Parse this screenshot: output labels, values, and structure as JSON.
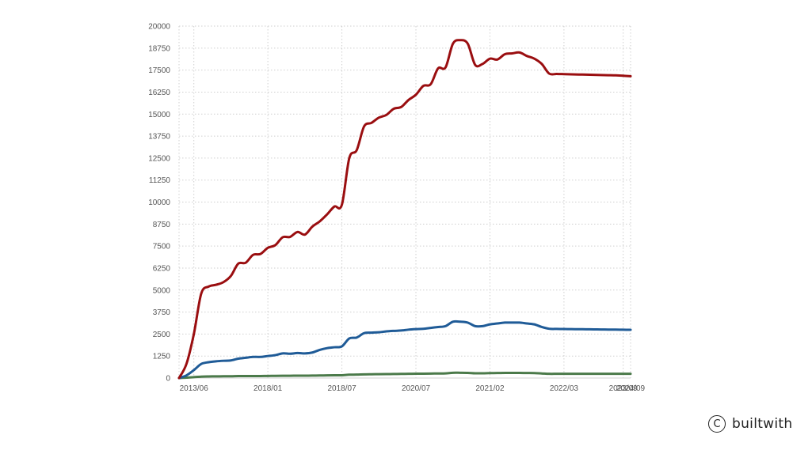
{
  "chart_data": {
    "type": "line",
    "title": "",
    "xlabel": "",
    "ylabel": "",
    "ylim": [
      0,
      20000
    ],
    "y_ticks": [
      0,
      1250,
      2500,
      3750,
      5000,
      6250,
      7500,
      8750,
      10000,
      11250,
      12500,
      13750,
      15000,
      16250,
      17500,
      18750,
      20000
    ],
    "x_range": [
      0,
      61
    ],
    "x_ticks": [
      {
        "label": "2013/06",
        "x": 2
      },
      {
        "label": "2018/01",
        "x": 12
      },
      {
        "label": "2018/07",
        "x": 22
      },
      {
        "label": "2020/07",
        "x": 32
      },
      {
        "label": "2021/02",
        "x": 42
      },
      {
        "label": "2022/03",
        "x": 52
      },
      {
        "label": "2023/09",
        "x": 60
      },
      {
        "label": "2024/09",
        "x": 61
      }
    ],
    "grid": true,
    "legend": "none",
    "series": [
      {
        "color": "#9a0e10",
        "x": [
          0,
          1,
          2,
          3,
          4,
          5,
          6,
          7,
          8,
          9,
          10,
          11,
          12,
          13,
          14,
          15,
          16,
          17,
          18,
          19,
          20,
          21,
          22,
          23,
          24,
          25,
          26,
          27,
          28,
          29,
          30,
          31,
          32,
          33,
          34,
          35,
          36,
          37,
          38,
          39,
          40,
          41,
          42,
          43,
          44,
          45,
          46,
          47,
          48,
          49,
          50,
          51,
          52,
          53,
          54,
          55,
          56,
          57,
          58,
          59,
          60,
          61
        ],
        "values": [
          0,
          800,
          2500,
          4800,
          5200,
          5300,
          5450,
          5800,
          6500,
          6550,
          7000,
          7050,
          7400,
          7550,
          8000,
          8020,
          8300,
          8150,
          8600,
          8900,
          9300,
          9750,
          9850,
          12500,
          12950,
          14300,
          14500,
          14800,
          14950,
          15300,
          15400,
          15800,
          16100,
          16600,
          16700,
          17600,
          17650,
          19000,
          19200,
          19000,
          17800,
          17850,
          18150,
          18100,
          18400,
          18450,
          18500,
          18300,
          18150,
          17850,
          17300,
          17280,
          17270,
          17260,
          17250,
          17240,
          17230,
          17220,
          17210,
          17200,
          17180,
          17150
        ]
      },
      {
        "color": "#1f5b97",
        "x": [
          0,
          1,
          2,
          3,
          4,
          5,
          6,
          7,
          8,
          9,
          10,
          11,
          12,
          13,
          14,
          15,
          16,
          17,
          18,
          19,
          20,
          21,
          22,
          23,
          24,
          25,
          26,
          27,
          28,
          29,
          30,
          31,
          32,
          33,
          34,
          35,
          36,
          37,
          38,
          39,
          40,
          41,
          42,
          43,
          44,
          45,
          46,
          47,
          48,
          49,
          50,
          51,
          52,
          53,
          54,
          55,
          56,
          57,
          58,
          59,
          60,
          61
        ],
        "values": [
          0,
          150,
          450,
          800,
          900,
          950,
          980,
          1000,
          1100,
          1150,
          1200,
          1200,
          1250,
          1300,
          1400,
          1380,
          1420,
          1400,
          1450,
          1600,
          1700,
          1750,
          1800,
          2250,
          2300,
          2550,
          2580,
          2600,
          2650,
          2680,
          2700,
          2750,
          2780,
          2800,
          2850,
          2900,
          2950,
          3200,
          3200,
          3150,
          2950,
          2950,
          3050,
          3100,
          3150,
          3150,
          3150,
          3100,
          3050,
          2900,
          2800,
          2790,
          2785,
          2780,
          2775,
          2770,
          2765,
          2760,
          2755,
          2750,
          2745,
          2740
        ]
      },
      {
        "color": "#4b7a4a",
        "x": [
          0,
          1,
          2,
          3,
          4,
          5,
          6,
          7,
          8,
          9,
          10,
          11,
          12,
          13,
          14,
          15,
          16,
          17,
          18,
          19,
          20,
          21,
          22,
          23,
          24,
          25,
          26,
          27,
          28,
          29,
          30,
          31,
          32,
          33,
          34,
          35,
          36,
          37,
          38,
          39,
          40,
          41,
          42,
          43,
          44,
          45,
          46,
          47,
          48,
          49,
          50,
          51,
          52,
          53,
          54,
          55,
          56,
          57,
          58,
          59,
          60,
          61
        ],
        "values": [
          0,
          20,
          50,
          80,
          90,
          95,
          100,
          100,
          110,
          110,
          115,
          115,
          120,
          125,
          130,
          130,
          135,
          135,
          140,
          145,
          150,
          155,
          160,
          190,
          195,
          210,
          215,
          220,
          225,
          230,
          235,
          240,
          245,
          250,
          255,
          260,
          265,
          300,
          300,
          295,
          270,
          270,
          280,
          285,
          290,
          290,
          290,
          285,
          280,
          260,
          240,
          240,
          240,
          240,
          240,
          240,
          240,
          240,
          240,
          240,
          240,
          240
        ]
      }
    ]
  },
  "watermark": {
    "symbol": "C",
    "brand": "builtwith"
  }
}
